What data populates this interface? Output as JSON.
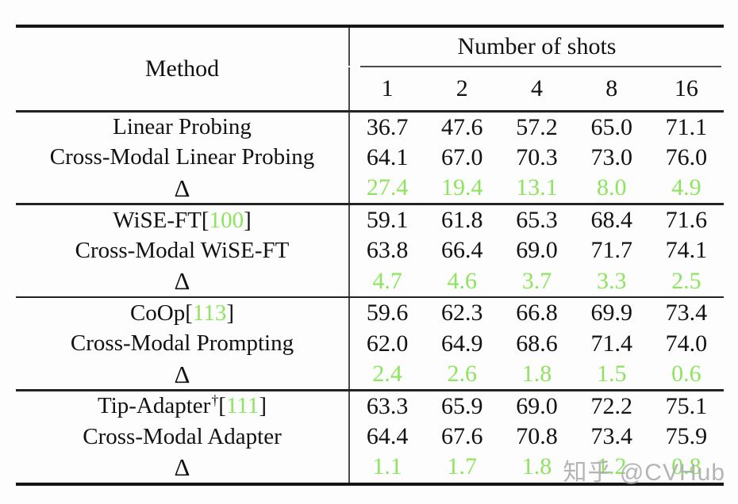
{
  "table": {
    "header": {
      "method_label": "Method",
      "shots_label": "Number of shots",
      "shot_counts": [
        "1",
        "2",
        "4",
        "8",
        "16"
      ]
    },
    "groups": [
      {
        "rows": [
          {
            "method": {
              "text": "Linear Probing"
            },
            "delta": false,
            "values": [
              "36.7",
              "47.6",
              "57.2",
              "65.0",
              "71.1"
            ]
          },
          {
            "method": {
              "text": "Cross-Modal Linear Probing"
            },
            "delta": false,
            "values": [
              "64.1",
              "67.0",
              "70.3",
              "73.0",
              "76.0"
            ]
          },
          {
            "method": {
              "text": "Δ"
            },
            "delta": true,
            "values": [
              "27.4",
              "19.4",
              "13.1",
              "8.0",
              "4.9"
            ]
          }
        ]
      },
      {
        "rows": [
          {
            "method": {
              "text": "WiSE-FT",
              "cite_open": " [",
              "cite_num": "100",
              "cite_close": "]"
            },
            "delta": false,
            "values": [
              "59.1",
              "61.8",
              "65.3",
              "68.4",
              "71.6"
            ]
          },
          {
            "method": {
              "text": "Cross-Modal WiSE-FT"
            },
            "delta": false,
            "values": [
              "63.8",
              "66.4",
              "69.0",
              "71.7",
              "74.1"
            ]
          },
          {
            "method": {
              "text": "Δ"
            },
            "delta": true,
            "values": [
              "4.7",
              "4.6",
              "3.7",
              "3.3",
              "2.5"
            ]
          }
        ]
      },
      {
        "rows": [
          {
            "method": {
              "text": "CoOp",
              "cite_open": " [",
              "cite_num": "113",
              "cite_close": "]"
            },
            "delta": false,
            "values": [
              "59.6",
              "62.3",
              "66.8",
              "69.9",
              "73.4"
            ]
          },
          {
            "method": {
              "text": "Cross-Modal Prompting"
            },
            "delta": false,
            "values": [
              "62.0",
              "64.9",
              "68.6",
              "71.4",
              "74.0"
            ]
          },
          {
            "method": {
              "text": "Δ"
            },
            "delta": true,
            "values": [
              "2.4",
              "2.6",
              "1.8",
              "1.5",
              "0.6"
            ]
          }
        ]
      },
      {
        "rows": [
          {
            "method": {
              "text": "Tip-Adapter",
              "sup": "†",
              "cite_open": " [",
              "cite_num": "111",
              "cite_close": "]"
            },
            "delta": false,
            "values": [
              "63.3",
              "65.9",
              "69.0",
              "72.2",
              "75.1"
            ]
          },
          {
            "method": {
              "text": "Cross-Modal Adapter"
            },
            "delta": false,
            "values": [
              "64.4",
              "67.6",
              "70.8",
              "73.4",
              "75.9"
            ]
          },
          {
            "method": {
              "text": "Δ"
            },
            "delta": true,
            "values": [
              "1.1",
              "1.7",
              "1.8",
              "1.2",
              "0.8"
            ]
          }
        ]
      }
    ]
  },
  "watermark": {
    "text": "知乎 @CVHub"
  },
  "colors": {
    "accent_green": "#8de45f",
    "watermark_gray": "#a8a8a8",
    "rule_black": "#161616"
  }
}
